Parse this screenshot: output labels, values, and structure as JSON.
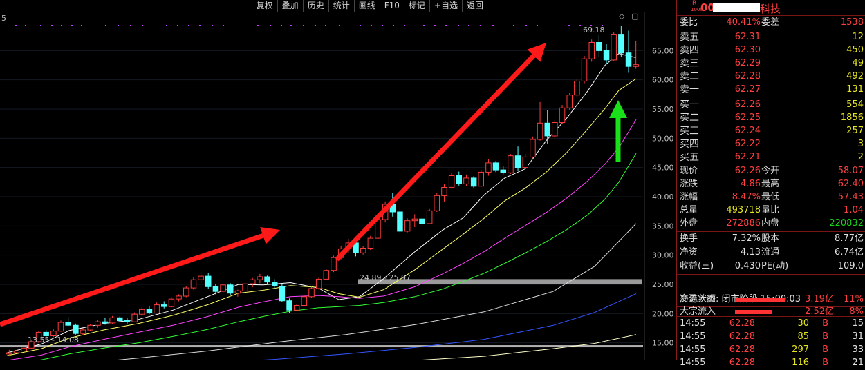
{
  "toolbar": {
    "buttons": [
      "复权",
      "叠加",
      "历史",
      "统计",
      "画线",
      "F10",
      "标记",
      "+自选",
      "返回"
    ],
    "icons": [
      "◇",
      "▢"
    ]
  },
  "chart": {
    "corner_label": "5",
    "peak_label": "69.18",
    "low_label1": "13.55 - 14.08",
    "low_label2": "24.89 - 25.97"
  },
  "chart_data": {
    "type": "candlestick",
    "y_ticks": [
      "65.00",
      "60.00",
      "55.00",
      "50.00",
      "45.00",
      "40.00",
      "35.00",
      "30.00",
      "25.00",
      "20.00",
      "15.00",
      "10.00"
    ],
    "y_range": [
      10,
      70
    ],
    "candles": [
      [
        13.1,
        13.8,
        12.7,
        13.3
      ],
      [
        13.3,
        13.8,
        13.2,
        13.6
      ],
      [
        13.6,
        14.3,
        13.4,
        14.1
      ],
      [
        14.1,
        15.4,
        14.0,
        15.2
      ],
      [
        15.2,
        17.1,
        15.0,
        16.8
      ],
      [
        16.8,
        17.2,
        15.9,
        16.2
      ],
      [
        16.2,
        17.3,
        16.0,
        17.0
      ],
      [
        17.0,
        18.8,
        16.9,
        18.5
      ],
      [
        18.5,
        19.4,
        17.9,
        18.0
      ],
      [
        18.0,
        18.3,
        16.4,
        16.6
      ],
      [
        16.6,
        17.5,
        16.3,
        17.2
      ],
      [
        17.2,
        18.2,
        17.0,
        18.0
      ],
      [
        18.0,
        18.9,
        17.6,
        18.6
      ],
      [
        18.6,
        19.3,
        18.1,
        18.4
      ],
      [
        18.4,
        19.6,
        18.2,
        19.3
      ],
      [
        19.3,
        19.5,
        18.6,
        18.8
      ],
      [
        18.8,
        19.3,
        18.2,
        18.6
      ],
      [
        18.6,
        20.2,
        18.5,
        19.9
      ],
      [
        19.9,
        21.1,
        19.6,
        20.7
      ],
      [
        20.7,
        21.3,
        19.9,
        20.1
      ],
      [
        20.1,
        21.9,
        20.0,
        21.5
      ],
      [
        21.5,
        22.1,
        20.9,
        21.2
      ],
      [
        21.2,
        22.8,
        21.1,
        22.5
      ],
      [
        22.5,
        23.3,
        22.1,
        23.0
      ],
      [
        23.0,
        24.7,
        22.8,
        24.4
      ],
      [
        24.4,
        26.2,
        24.1,
        25.8
      ],
      [
        25.8,
        27.1,
        25.2,
        26.4
      ],
      [
        26.4,
        26.9,
        24.2,
        24.6
      ],
      [
        24.6,
        25.1,
        23.3,
        23.8
      ],
      [
        23.8,
        25.3,
        23.5,
        24.9
      ],
      [
        24.9,
        25.2,
        23.2,
        23.5
      ],
      [
        23.5,
        24.1,
        22.9,
        23.9
      ],
      [
        23.9,
        25.4,
        23.6,
        25.1
      ],
      [
        25.1,
        26.1,
        24.5,
        25.8
      ],
      [
        25.8,
        26.8,
        25.2,
        26.3
      ],
      [
        26.3,
        26.5,
        25.0,
        25.4
      ],
      [
        25.4,
        25.9,
        24.3,
        24.7
      ],
      [
        24.7,
        25.1,
        22.0,
        22.2
      ],
      [
        22.2,
        22.6,
        20.1,
        20.6
      ],
      [
        20.6,
        21.7,
        20.4,
        21.4
      ],
      [
        21.4,
        23.2,
        21.3,
        22.9
      ],
      [
        22.9,
        24.6,
        22.7,
        24.3
      ],
      [
        24.3,
        26.2,
        24.1,
        25.9
      ],
      [
        25.9,
        27.7,
        25.8,
        27.4
      ],
      [
        27.4,
        29.9,
        27.1,
        29.6
      ],
      [
        29.6,
        31.6,
        29.3,
        31.1
      ],
      [
        31.1,
        32.8,
        30.3,
        32.1
      ],
      [
        32.1,
        32.6,
        29.8,
        30.4
      ],
      [
        30.4,
        31.5,
        30.1,
        31.2
      ],
      [
        31.2,
        33.3,
        30.9,
        32.9
      ],
      [
        32.9,
        36.4,
        32.8,
        36.1
      ],
      [
        36.1,
        39.2,
        35.6,
        38.7
      ],
      [
        38.7,
        40.6,
        36.6,
        37.4
      ],
      [
        37.4,
        38.1,
        33.6,
        34.1
      ],
      [
        34.1,
        36.3,
        33.9,
        35.9
      ],
      [
        35.9,
        37.0,
        34.8,
        36.2
      ],
      [
        36.2,
        36.5,
        35.1,
        35.4
      ],
      [
        35.4,
        37.9,
        35.3,
        37.6
      ],
      [
        37.6,
        40.6,
        37.4,
        40.2
      ],
      [
        40.2,
        42.2,
        39.1,
        41.6
      ],
      [
        41.6,
        44.1,
        41.4,
        43.6
      ],
      [
        43.6,
        44.3,
        41.9,
        42.2
      ],
      [
        42.2,
        43.8,
        41.8,
        43.2
      ],
      [
        43.2,
        43.5,
        41.4,
        41.8
      ],
      [
        41.8,
        44.6,
        41.7,
        44.2
      ],
      [
        44.2,
        46.4,
        43.6,
        45.8
      ],
      [
        45.8,
        46.1,
        44.2,
        44.6
      ],
      [
        44.6,
        45.2,
        43.8,
        44.1
      ],
      [
        44.1,
        47.3,
        43.9,
        47.0
      ],
      [
        47.0,
        48.6,
        44.4,
        45.0
      ],
      [
        45.0,
        47.3,
        44.8,
        46.8
      ],
      [
        46.8,
        50.3,
        46.6,
        49.8
      ],
      [
        49.8,
        56.2,
        49.6,
        52.6
      ],
      [
        52.6,
        54.8,
        49.1,
        50.4
      ],
      [
        50.4,
        53.1,
        50.0,
        52.7
      ],
      [
        52.7,
        55.7,
        52.5,
        55.2
      ],
      [
        55.2,
        57.8,
        54.9,
        57.4
      ],
      [
        57.4,
        60.2,
        57.1,
        59.8
      ],
      [
        59.8,
        64.1,
        59.4,
        63.6
      ],
      [
        63.6,
        66.9,
        63.1,
        66.4
      ],
      [
        66.4,
        67.6,
        63.9,
        65.0
      ],
      [
        65.0,
        66.1,
        62.8,
        63.4
      ],
      [
        63.4,
        68.1,
        63.2,
        67.8
      ],
      [
        67.8,
        69.2,
        63.9,
        64.6
      ],
      [
        64.6,
        68.4,
        61.2,
        62.3
      ],
      [
        62.3,
        66.7,
        61.9,
        62.6
      ]
    ],
    "ma": [
      {
        "color": "#ffffff",
        "pts": [
          [
            10,
            13.3
          ],
          [
            60,
            14.8
          ],
          [
            100,
            17.1
          ],
          [
            150,
            18.3
          ],
          [
            200,
            19.0
          ],
          [
            250,
            20.6
          ],
          [
            300,
            22.9
          ],
          [
            345,
            25.0
          ],
          [
            380,
            24.9
          ],
          [
            420,
            25.3
          ],
          [
            460,
            24.4
          ],
          [
            490,
            22.4
          ],
          [
            520,
            22.9
          ],
          [
            555,
            26.0
          ],
          [
            600,
            30.6
          ],
          [
            640,
            34.3
          ],
          [
            670,
            36.4
          ],
          [
            700,
            40.3
          ],
          [
            730,
            43.2
          ],
          [
            760,
            44.8
          ],
          [
            790,
            49.6
          ],
          [
            820,
            53.5
          ],
          [
            850,
            58.1
          ],
          [
            875,
            62.5
          ],
          [
            895,
            64.5
          ],
          [
            920,
            63.8
          ]
        ]
      },
      {
        "color": "#ffff66",
        "pts": [
          [
            10,
            12.8
          ],
          [
            60,
            14.0
          ],
          [
            100,
            15.8
          ],
          [
            150,
            17.2
          ],
          [
            200,
            18.3
          ],
          [
            250,
            19.7
          ],
          [
            300,
            21.5
          ],
          [
            345,
            23.5
          ],
          [
            380,
            24.0
          ],
          [
            420,
            24.8
          ],
          [
            460,
            24.5
          ],
          [
            490,
            23.4
          ],
          [
            520,
            22.8
          ],
          [
            555,
            24.1
          ],
          [
            600,
            27.5
          ],
          [
            640,
            31.0
          ],
          [
            670,
            33.6
          ],
          [
            700,
            36.3
          ],
          [
            730,
            39.3
          ],
          [
            760,
            41.5
          ],
          [
            790,
            44.2
          ],
          [
            820,
            47.6
          ],
          [
            850,
            51.6
          ],
          [
            875,
            55.1
          ],
          [
            895,
            58.2
          ],
          [
            920,
            60.2
          ]
        ]
      },
      {
        "color": "#ff44ff",
        "pts": [
          [
            10,
            12.0
          ],
          [
            60,
            12.9
          ],
          [
            100,
            14.3
          ],
          [
            150,
            15.6
          ],
          [
            200,
            16.8
          ],
          [
            250,
            18.0
          ],
          [
            300,
            19.5
          ],
          [
            345,
            21.1
          ],
          [
            380,
            22.0
          ],
          [
            420,
            22.9
          ],
          [
            460,
            23.1
          ],
          [
            490,
            22.9
          ],
          [
            520,
            22.6
          ],
          [
            555,
            23.0
          ],
          [
            600,
            24.6
          ],
          [
            640,
            26.8
          ],
          [
            670,
            28.6
          ],
          [
            700,
            30.6
          ],
          [
            730,
            32.9
          ],
          [
            760,
            35.1
          ],
          [
            790,
            37.3
          ],
          [
            820,
            39.8
          ],
          [
            850,
            42.7
          ],
          [
            875,
            45.6
          ],
          [
            895,
            48.4
          ],
          [
            920,
            53.2
          ]
        ]
      },
      {
        "color": "#33ff33",
        "pts": [
          [
            10,
            11.5
          ],
          [
            60,
            12.1
          ],
          [
            100,
            13.1
          ],
          [
            150,
            14.1
          ],
          [
            200,
            15.0
          ],
          [
            250,
            16.1
          ],
          [
            300,
            17.3
          ],
          [
            345,
            18.6
          ],
          [
            380,
            19.5
          ],
          [
            420,
            20.4
          ],
          [
            460,
            21.0
          ],
          [
            490,
            21.2
          ],
          [
            520,
            21.4
          ],
          [
            555,
            21.9
          ],
          [
            600,
            22.9
          ],
          [
            640,
            24.2
          ],
          [
            670,
            25.5
          ],
          [
            700,
            26.9
          ],
          [
            730,
            28.6
          ],
          [
            760,
            30.4
          ],
          [
            790,
            32.3
          ],
          [
            820,
            34.4
          ],
          [
            850,
            36.9
          ],
          [
            875,
            39.6
          ],
          [
            895,
            42.5
          ],
          [
            920,
            47.4
          ]
        ]
      },
      {
        "color": "#dddddd",
        "pts": [
          [
            10,
            10.6
          ],
          [
            100,
            11.3
          ],
          [
            200,
            12.4
          ],
          [
            300,
            13.6
          ],
          [
            400,
            15.1
          ],
          [
            500,
            16.4
          ],
          [
            600,
            18.1
          ],
          [
            700,
            20.3
          ],
          [
            800,
            23.8
          ],
          [
            860,
            28.1
          ],
          [
            920,
            35.4
          ]
        ]
      },
      {
        "color": "#3355ff",
        "pts": [
          [
            10,
            10.1
          ],
          [
            100,
            10.4
          ],
          [
            200,
            10.9
          ],
          [
            300,
            11.5
          ],
          [
            400,
            12.2
          ],
          [
            500,
            13.1
          ],
          [
            600,
            14.2
          ],
          [
            700,
            15.6
          ],
          [
            800,
            18.0
          ],
          [
            860,
            20.2
          ],
          [
            920,
            23.4
          ]
        ]
      },
      {
        "color": "#ffffcc",
        "pts": [
          [
            10,
            9.8
          ],
          [
            200,
            10.2
          ],
          [
            400,
            11.0
          ],
          [
            600,
            12.0
          ],
          [
            700,
            12.7
          ],
          [
            800,
            14.0
          ],
          [
            860,
            14.9
          ],
          [
            920,
            16.4
          ]
        ]
      }
    ]
  },
  "panel": {
    "title_prefix": "R",
    "title_sub": "1000",
    "stock_code": "00",
    "stock_name_tail": "科技",
    "webi": {
      "label": "委比",
      "value": "40.41%",
      "label2": "委差",
      "value2": "1538"
    },
    "sells": [
      {
        "label": "卖五",
        "price": "62.31",
        "vol": "12"
      },
      {
        "label": "卖四",
        "price": "62.30",
        "vol": "450"
      },
      {
        "label": "卖三",
        "price": "62.29",
        "vol": "49"
      },
      {
        "label": "卖二",
        "price": "62.28",
        "vol": "492"
      },
      {
        "label": "卖一",
        "price": "62.27",
        "vol": "131"
      }
    ],
    "buys": [
      {
        "label": "买一",
        "price": "62.26",
        "vol": "554"
      },
      {
        "label": "买二",
        "price": "62.25",
        "vol": "1856"
      },
      {
        "label": "买三",
        "price": "62.24",
        "vol": "257"
      },
      {
        "label": "买四",
        "price": "62.22",
        "vol": "3"
      },
      {
        "label": "买五",
        "price": "62.21",
        "vol": "2"
      }
    ],
    "quote": [
      {
        "l1": "现价",
        "v1": "62.26",
        "c1": "red",
        "l2": "今开",
        "v2": "58.07",
        "c2": "red"
      },
      {
        "l1": "涨跌",
        "v1": "4.86",
        "c1": "red",
        "l2": "最高",
        "v2": "62.40",
        "c2": "red"
      },
      {
        "l1": "涨幅",
        "v1": "8.47%",
        "c1": "red",
        "l2": "最低",
        "v2": "57.43",
        "c2": "red"
      },
      {
        "l1": "总量",
        "v1": "493718",
        "c1": "yellow",
        "l2": "量比",
        "v2": "1.04",
        "c2": "red"
      },
      {
        "l1": "外盘",
        "v1": "272886",
        "c1": "red",
        "l2": "内盘",
        "v2": "220832",
        "c2": "green"
      }
    ],
    "fund": [
      {
        "l1": "换手",
        "v1": "7.32%",
        "l2": "股本",
        "v2": "8.77亿"
      },
      {
        "l1": "净资",
        "v1": "4.13",
        "l2": "流通",
        "v2": "6.74亿"
      },
      {
        "l1": "收益(三)",
        "v1": "0.430",
        "l2": "PE(动)",
        "v2": "109.0"
      }
    ],
    "trade_status": "交易状态: 闭市阶段 15:00:03",
    "flows": [
      {
        "label": "净流入额",
        "value": "3.19亿",
        "pct": "11%"
      },
      {
        "label": "大宗流入",
        "value": "2.52亿",
        "pct": "8%"
      }
    ],
    "ticks": [
      {
        "time": "14:55",
        "price": "62.28",
        "vol": "30",
        "side": "B",
        "n": "15"
      },
      {
        "time": "14:55",
        "price": "62.28",
        "vol": "85",
        "side": "B",
        "n": "31"
      },
      {
        "time": "14:55",
        "price": "62.28",
        "vol": "297",
        "side": "B",
        "n": "33"
      },
      {
        "time": "14:55",
        "price": "62.28",
        "vol": "116",
        "side": "B",
        "n": "21"
      }
    ]
  }
}
